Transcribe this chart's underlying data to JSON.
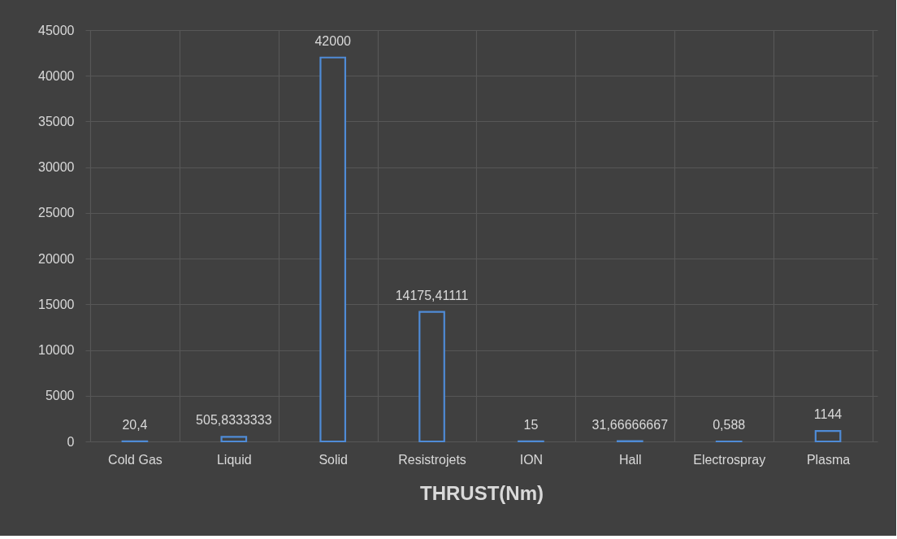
{
  "chart_data": {
    "type": "bar",
    "xlabel": "THRUST(Nm)",
    "categories": [
      "Cold Gas",
      "Liquid",
      "Solid",
      "Resistrojets",
      "ION",
      "Hall",
      "Electrospray",
      "Plasma"
    ],
    "values": [
      20.4,
      505.8333333,
      42000,
      14175.41111,
      15,
      31.66666667,
      0.588,
      1144
    ],
    "value_labels": [
      "20,4",
      "505,8333333",
      "42000",
      "14175,41111",
      "15",
      "31,66666667",
      "0,588",
      "1144"
    ],
    "color": "#4f8bd6",
    "ylim": [
      0,
      45000
    ],
    "yticks": [
      0,
      5000,
      10000,
      15000,
      20000,
      25000,
      30000,
      35000,
      40000,
      45000
    ],
    "grid": true
  }
}
